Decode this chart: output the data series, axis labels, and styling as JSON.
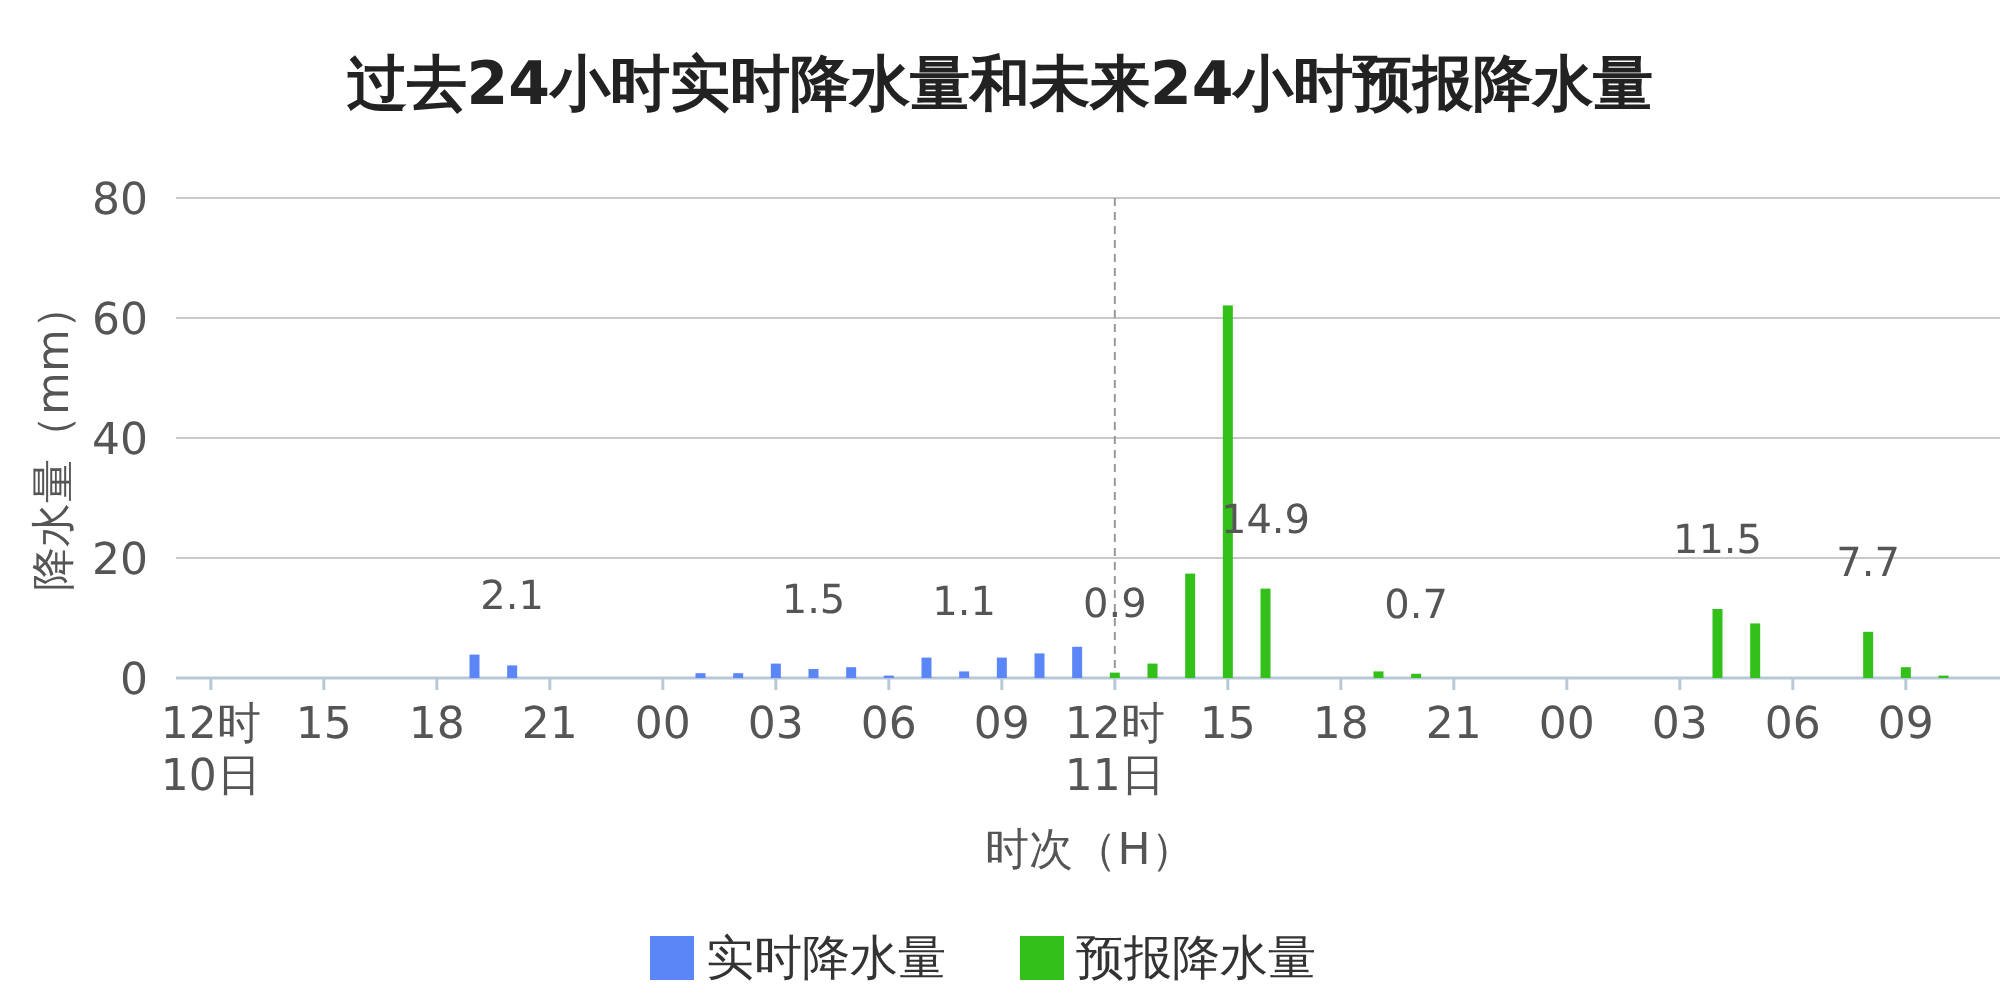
{
  "chart_data": {
    "type": "bar",
    "title": "过去24小时实时降水量和未来24小时预报降水量",
    "xlabel": "时次（H）",
    "ylabel": "降水量（mm）",
    "categories": [
      "12时\n10日",
      null,
      null,
      "15",
      null,
      null,
      "18",
      null,
      null,
      "21",
      null,
      null,
      "00",
      null,
      null,
      "03",
      null,
      null,
      "06",
      null,
      null,
      "09",
      null,
      null,
      "12时\n11日",
      null,
      null,
      "15",
      null,
      null,
      "18",
      null,
      null,
      "21",
      null,
      null,
      "00",
      null,
      null,
      "03",
      null,
      null,
      "06",
      null,
      null,
      "09",
      null,
      null
    ],
    "series": [
      {
        "name": "实时降水量",
        "color": "#5b86f7",
        "values": [
          null,
          null,
          null,
          null,
          null,
          null,
          null,
          3.9,
          2.1,
          null,
          null,
          null,
          null,
          0.8,
          0.8,
          2.4,
          1.5,
          1.8,
          0.4,
          3.4,
          1.1,
          3.4,
          4.1,
          5.2,
          null,
          null,
          null,
          null,
          null,
          null,
          null,
          null,
          null,
          null,
          null,
          null,
          null,
          null,
          null,
          null,
          null,
          null,
          null,
          null,
          null,
          null,
          null,
          null
        ],
        "value_labels": [
          null,
          null,
          null,
          null,
          null,
          null,
          null,
          null,
          "2.1",
          null,
          null,
          null,
          null,
          null,
          null,
          null,
          "1.5",
          null,
          null,
          null,
          "1.1",
          null,
          null,
          null,
          null,
          null,
          null,
          null,
          null,
          null,
          null,
          null,
          null,
          null,
          null,
          null,
          null,
          null,
          null,
          null,
          null,
          null,
          null,
          null,
          null,
          null,
          null,
          null
        ]
      },
      {
        "name": "预报降水量",
        "color": "#33c01a",
        "values": [
          null,
          null,
          null,
          null,
          null,
          null,
          null,
          null,
          null,
          null,
          null,
          null,
          null,
          null,
          null,
          null,
          null,
          null,
          null,
          null,
          null,
          null,
          null,
          null,
          0.9,
          2.4,
          17.4,
          62.1,
          14.9,
          null,
          null,
          1.1,
          0.7,
          null,
          null,
          null,
          null,
          null,
          null,
          null,
          11.5,
          9.1,
          null,
          null,
          7.7,
          1.8,
          0.4,
          null
        ],
        "value_labels": [
          null,
          null,
          null,
          null,
          null,
          null,
          null,
          null,
          null,
          null,
          null,
          null,
          null,
          null,
          null,
          null,
          null,
          null,
          null,
          null,
          null,
          null,
          null,
          null,
          "0.9",
          null,
          null,
          null,
          "14.9",
          null,
          null,
          null,
          "0.7",
          null,
          null,
          null,
          null,
          null,
          null,
          null,
          "11.5",
          null,
          null,
          null,
          "7.7",
          null,
          null,
          null
        ]
      }
    ],
    "ylim": [
      0,
      80
    ],
    "yticks": [
      0,
      20,
      40,
      60,
      80
    ],
    "grid": "y",
    "legend": "bottom",
    "ref_lines": [
      {
        "axis": "x",
        "value": "12时\n11日",
        "color": "#999999",
        "line_style": "dashed"
      }
    ]
  }
}
